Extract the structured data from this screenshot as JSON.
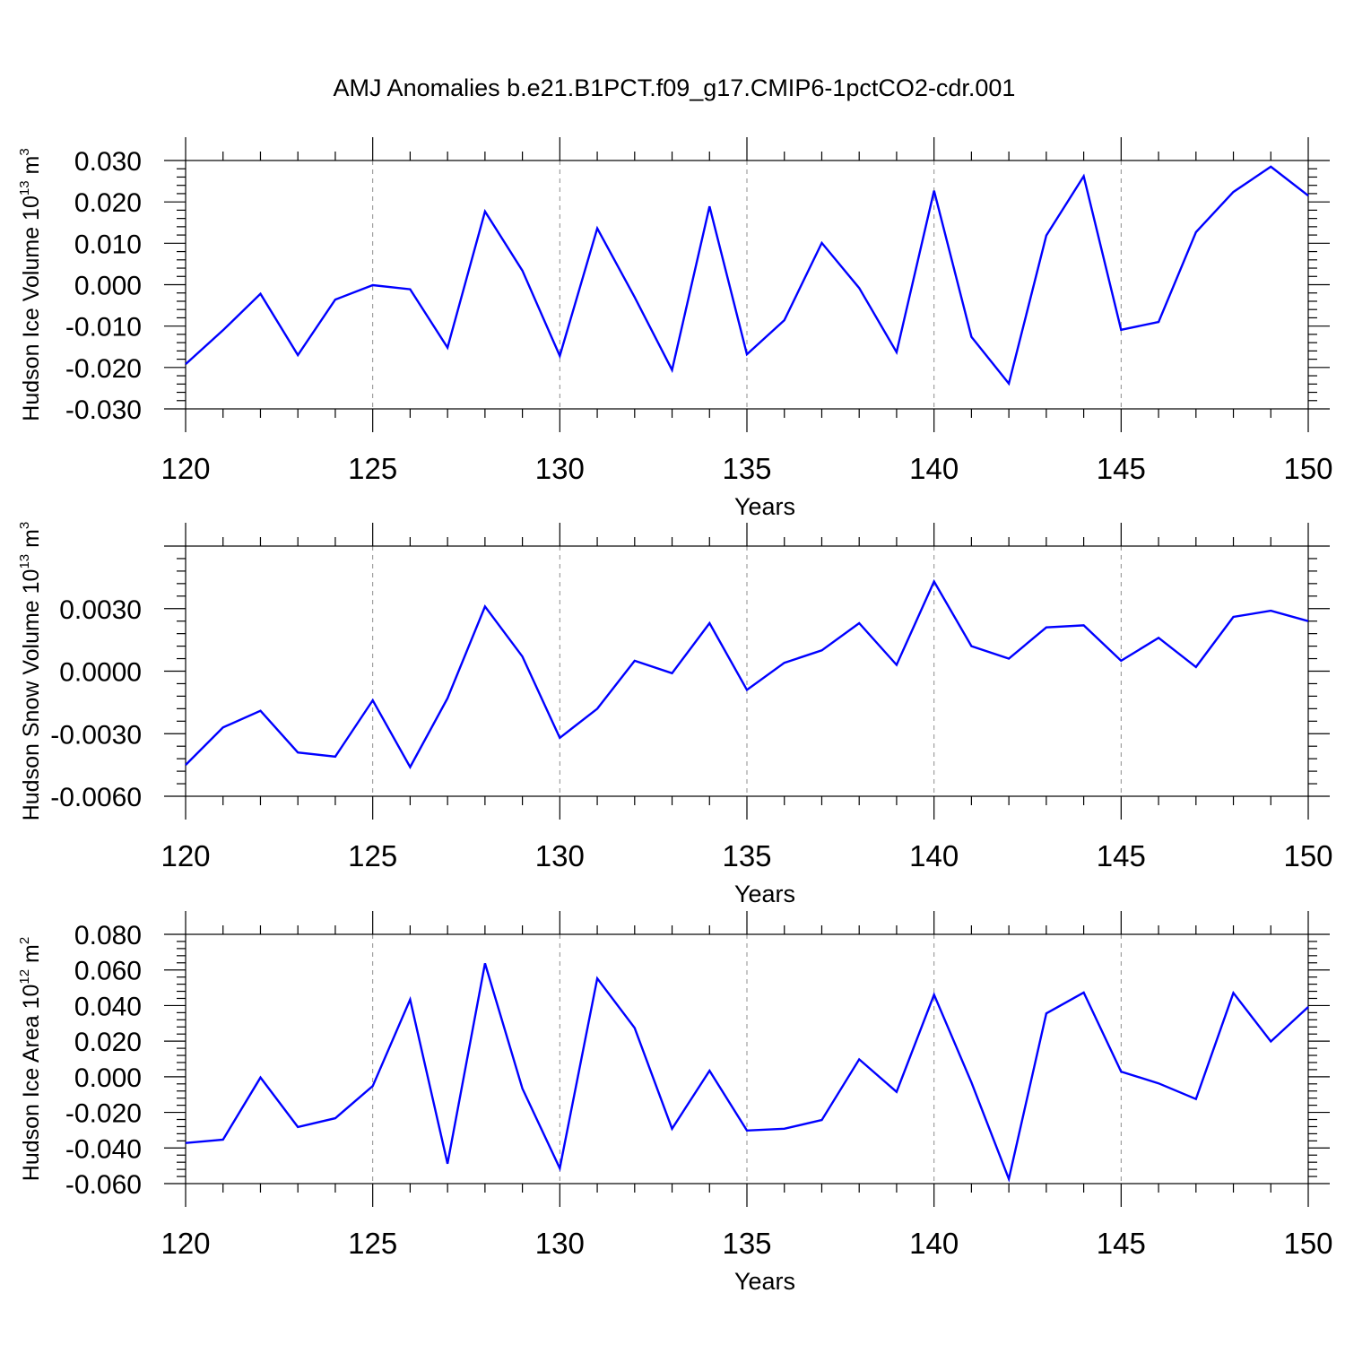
{
  "chart_data": [
    {
      "type": "line",
      "title": "AMJ Anomalies b.e21.B1PCT.f09_g17.CMIP6-1pctCO2-cdr.001",
      "xlabel": "Years",
      "ylabel": "Hudson Ice Volume 10",
      "ylabel_exponent": "13",
      "ylabel_unit": "m",
      "ylabel_unit_exponent": "3",
      "xlim": [
        120,
        150
      ],
      "ylim": [
        -0.03,
        0.03
      ],
      "x_ticks": [
        "120",
        "125",
        "130",
        "135",
        "140",
        "145",
        "150"
      ],
      "y_ticks": [
        "-0.030",
        "-0.020",
        "-0.010",
        "0.000",
        "0.010",
        "0.020",
        "0.030"
      ],
      "line_color": "#0000ff",
      "x": [
        120,
        121,
        122,
        123,
        124,
        125,
        126,
        127,
        128,
        129,
        130,
        131,
        132,
        133,
        134,
        135,
        136,
        137,
        138,
        139,
        140,
        141,
        142,
        143,
        144,
        145,
        146,
        147,
        148,
        149,
        150
      ],
      "values": [
        -0.0192,
        -0.011,
        -0.0022,
        -0.017,
        -0.0036,
        -0.0001,
        -0.0011,
        -0.0152,
        0.0177,
        0.0034,
        -0.0172,
        0.0136,
        -0.003,
        -0.0206,
        0.0189,
        -0.0168,
        -0.0086,
        0.0101,
        -0.0008,
        -0.0163,
        0.0227,
        -0.0126,
        -0.0239,
        0.0119,
        0.0262,
        -0.0109,
        -0.009,
        0.0127,
        0.0224,
        0.0285,
        0.0215
      ]
    },
    {
      "type": "line",
      "xlabel": "Years",
      "ylabel": "Hudson Snow Volume 10",
      "ylabel_exponent": "13",
      "ylabel_unit": "m",
      "ylabel_unit_exponent": "3",
      "xlim": [
        120,
        150
      ],
      "ylim": [
        -0.006,
        0.006
      ],
      "x_ticks": [
        "120",
        "125",
        "130",
        "135",
        "140",
        "145",
        "150"
      ],
      "y_ticks": [
        "-0.0060",
        "-0.0030",
        "0.0000",
        "0.0030"
      ],
      "y_tick_values": [
        -0.006,
        -0.003,
        0.0,
        0.003
      ],
      "line_color": "#0000ff",
      "x": [
        120,
        121,
        122,
        123,
        124,
        125,
        126,
        127,
        128,
        129,
        130,
        131,
        132,
        133,
        134,
        135,
        136,
        137,
        138,
        139,
        140,
        141,
        142,
        143,
        144,
        145,
        146,
        147,
        148,
        149,
        150
      ],
      "values": [
        -0.0045,
        -0.0027,
        -0.0019,
        -0.0039,
        -0.0041,
        -0.0014,
        -0.0046,
        -0.0013,
        0.0031,
        0.0007,
        -0.0032,
        -0.0018,
        0.0005,
        -0.0001,
        0.0023,
        -0.0009,
        0.0004,
        0.001,
        0.0023,
        0.0003,
        0.0043,
        0.0012,
        0.0006,
        0.0021,
        0.0022,
        0.0005,
        0.0016,
        0.0002,
        0.0026,
        0.0029,
        0.0024
      ]
    },
    {
      "type": "line",
      "xlabel": "Years",
      "ylabel": "Hudson Ice Area 10",
      "ylabel_exponent": "12",
      "ylabel_unit": "m",
      "ylabel_unit_exponent": "2",
      "xlim": [
        120,
        150
      ],
      "ylim": [
        -0.06,
        0.08
      ],
      "x_ticks": [
        "120",
        "125",
        "130",
        "135",
        "140",
        "145",
        "150"
      ],
      "y_ticks": [
        "-0.060",
        "-0.040",
        "-0.020",
        "0.000",
        "0.020",
        "0.040",
        "0.060",
        "0.080"
      ],
      "line_color": "#0000ff",
      "x": [
        120,
        121,
        122,
        123,
        124,
        125,
        126,
        127,
        128,
        129,
        130,
        131,
        132,
        133,
        134,
        135,
        136,
        137,
        138,
        139,
        140,
        141,
        142,
        143,
        144,
        145,
        146,
        147,
        148,
        149,
        150
      ],
      "values": [
        -0.0372,
        -0.0353,
        -0.0004,
        -0.0282,
        -0.0233,
        -0.0052,
        0.0434,
        -0.0488,
        0.0637,
        -0.0066,
        -0.0514,
        0.0552,
        0.0274,
        -0.0292,
        0.0034,
        -0.0302,
        -0.0292,
        -0.0243,
        0.0098,
        -0.0085,
        0.0461,
        -0.0032,
        -0.0574,
        0.0356,
        0.0473,
        0.0029,
        -0.0037,
        -0.0125,
        0.0471,
        0.0198,
        0.0392
      ]
    }
  ]
}
